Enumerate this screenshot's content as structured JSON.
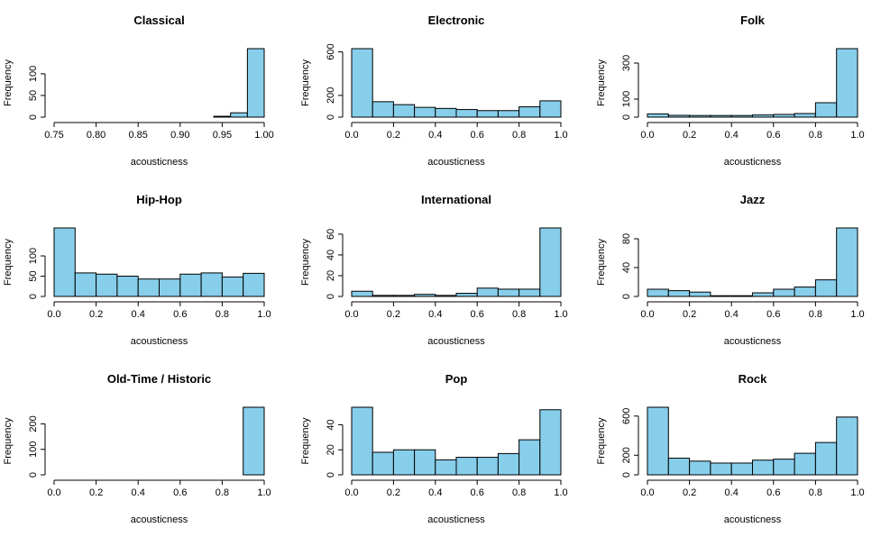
{
  "chart_data": [
    {
      "type": "histogram",
      "title": "Classical",
      "xlabel": "acousticness",
      "ylabel": "Frequency",
      "color": "#87ceeb",
      "bins": [
        0.76,
        0.78,
        0.8,
        0.82,
        0.84,
        0.86,
        0.88,
        0.9,
        0.92,
        0.94,
        0.96,
        0.98,
        1.0
      ],
      "counts": [
        0,
        0,
        0,
        0,
        0,
        0,
        0,
        0,
        0,
        2,
        10,
        158
      ],
      "xlim": [
        0.75,
        1.0
      ],
      "xticks": [
        0.75,
        {
          "value": 0.8,
          "label": "0.80"
        },
        0.85,
        {
          "value": 0.9,
          "label": "0.90"
        },
        0.95,
        {
          "value": 1.0,
          "label": "1.00"
        }
      ],
      "ylim": [
        0,
        158
      ],
      "yticks": [
        0,
        50,
        100
      ]
    },
    {
      "type": "histogram",
      "title": "Electronic",
      "xlabel": "acousticness",
      "ylabel": "Frequency",
      "color": "#87ceeb",
      "bins": [
        0,
        0.1,
        0.2,
        0.3,
        0.4,
        0.5,
        0.6,
        0.7,
        0.8,
        0.9,
        1.0
      ],
      "counts": [
        630,
        142,
        115,
        90,
        80,
        70,
        60,
        60,
        95,
        150
      ],
      "xlim": [
        0,
        1
      ],
      "xticks": [
        {
          "value": 0,
          "label": "0.0"
        },
        0.2,
        0.4,
        0.6,
        0.8,
        {
          "value": 1,
          "label": "1.0"
        }
      ],
      "ylim": [
        0,
        630
      ],
      "yticks": [
        0,
        200,
        600
      ]
    },
    {
      "type": "histogram",
      "title": "Folk",
      "xlabel": "acousticness",
      "ylabel": "Frequency",
      "color": "#87ceeb",
      "bins": [
        0,
        0.1,
        0.2,
        0.3,
        0.4,
        0.5,
        0.6,
        0.7,
        0.8,
        0.9,
        1.0
      ],
      "counts": [
        18,
        10,
        9,
        9,
        9,
        12,
        15,
        20,
        80,
        380
      ],
      "xlim": [
        0,
        1
      ],
      "xticks": [
        {
          "value": 0,
          "label": "0.0"
        },
        0.2,
        0.4,
        0.6,
        0.8,
        {
          "value": 1,
          "label": "1.0"
        }
      ],
      "ylim": [
        0,
        380
      ],
      "yticks": [
        0,
        100,
        300
      ]
    },
    {
      "type": "histogram",
      "title": "Hip-Hop",
      "xlabel": "acousticness",
      "ylabel": "Frequency",
      "color": "#87ceeb",
      "bins": [
        0,
        0.1,
        0.2,
        0.3,
        0.4,
        0.5,
        0.6,
        0.7,
        0.8,
        0.9,
        1.0
      ],
      "counts": [
        169,
        58,
        55,
        50,
        43,
        43,
        55,
        58,
        48,
        57
      ],
      "xlim": [
        0,
        1
      ],
      "xticks": [
        {
          "value": 0,
          "label": "0.0"
        },
        0.2,
        0.4,
        0.6,
        0.8,
        {
          "value": 1,
          "label": "1.0"
        }
      ],
      "ylim": [
        0,
        169
      ],
      "yticks": [
        0,
        50,
        100
      ]
    },
    {
      "type": "histogram",
      "title": "International",
      "xlabel": "acousticness",
      "ylabel": "Frequency",
      "color": "#87ceeb",
      "bins": [
        0,
        0.1,
        0.2,
        0.3,
        0.4,
        0.5,
        0.6,
        0.7,
        0.8,
        0.9,
        1.0
      ],
      "counts": [
        5,
        1,
        1,
        2,
        1,
        3,
        8,
        7,
        7,
        66
      ],
      "xlim": [
        0,
        1
      ],
      "xticks": [
        {
          "value": 0,
          "label": "0.0"
        },
        0.2,
        0.4,
        0.6,
        0.8,
        {
          "value": 1,
          "label": "1.0"
        }
      ],
      "ylim": [
        0,
        66
      ],
      "yticks": [
        0,
        20,
        40,
        60
      ]
    },
    {
      "type": "histogram",
      "title": "Jazz",
      "xlabel": "acousticness",
      "ylabel": "Frequency",
      "color": "#87ceeb",
      "bins": [
        0,
        0.1,
        0.2,
        0.3,
        0.4,
        0.5,
        0.6,
        0.7,
        0.8,
        0.9,
        1.0
      ],
      "counts": [
        10,
        8,
        6,
        1,
        1,
        5,
        10,
        13,
        23,
        95
      ],
      "xlim": [
        0,
        1
      ],
      "xticks": [
        {
          "value": 0,
          "label": "0.0"
        },
        0.2,
        0.4,
        0.6,
        0.8,
        {
          "value": 1,
          "label": "1.0"
        }
      ],
      "ylim": [
        0,
        95
      ],
      "yticks": [
        0,
        40,
        80
      ]
    },
    {
      "type": "histogram",
      "title": "Old-Time / Historic",
      "xlabel": "acousticness",
      "ylabel": "Frequency",
      "color": "#87ceeb",
      "bins": [
        0,
        0.1,
        0.2,
        0.3,
        0.4,
        0.5,
        0.6,
        0.7,
        0.8,
        0.9,
        1.0
      ],
      "counts": [
        0,
        0,
        0,
        0,
        0,
        0,
        0,
        0,
        0,
        265
      ],
      "xlim": [
        0,
        1
      ],
      "xticks": [
        {
          "value": 0,
          "label": "0.0"
        },
        0.2,
        0.4,
        0.6,
        0.8,
        {
          "value": 1,
          "label": "1.0"
        }
      ],
      "ylim": [
        0,
        265
      ],
      "yticks": [
        0,
        100,
        200
      ]
    },
    {
      "type": "histogram",
      "title": "Pop",
      "xlabel": "acousticness",
      "ylabel": "Frequency",
      "color": "#87ceeb",
      "bins": [
        0,
        0.1,
        0.2,
        0.3,
        0.4,
        0.5,
        0.6,
        0.7,
        0.8,
        0.9,
        1.0
      ],
      "counts": [
        54,
        18,
        20,
        20,
        12,
        14,
        14,
        17,
        28,
        52
      ],
      "xlim": [
        0,
        1
      ],
      "xticks": [
        {
          "value": 0,
          "label": "0.0"
        },
        0.2,
        0.4,
        0.6,
        0.8,
        {
          "value": 1,
          "label": "1.0"
        }
      ],
      "ylim": [
        0,
        54
      ],
      "yticks": [
        0,
        20,
        40
      ]
    },
    {
      "type": "histogram",
      "title": "Rock",
      "xlabel": "acousticness",
      "ylabel": "Frequency",
      "color": "#87ceeb",
      "bins": [
        0,
        0.1,
        0.2,
        0.3,
        0.4,
        0.5,
        0.6,
        0.7,
        0.8,
        0.9,
        1.0
      ],
      "counts": [
        690,
        170,
        140,
        120,
        120,
        150,
        160,
        220,
        330,
        590
      ],
      "xlim": [
        0,
        1
      ],
      "xticks": [
        {
          "value": 0,
          "label": "0.0"
        },
        0.2,
        0.4,
        0.6,
        0.8,
        {
          "value": 1,
          "label": "1.0"
        }
      ],
      "ylim": [
        0,
        690
      ],
      "yticks": [
        0,
        200,
        600
      ]
    }
  ]
}
